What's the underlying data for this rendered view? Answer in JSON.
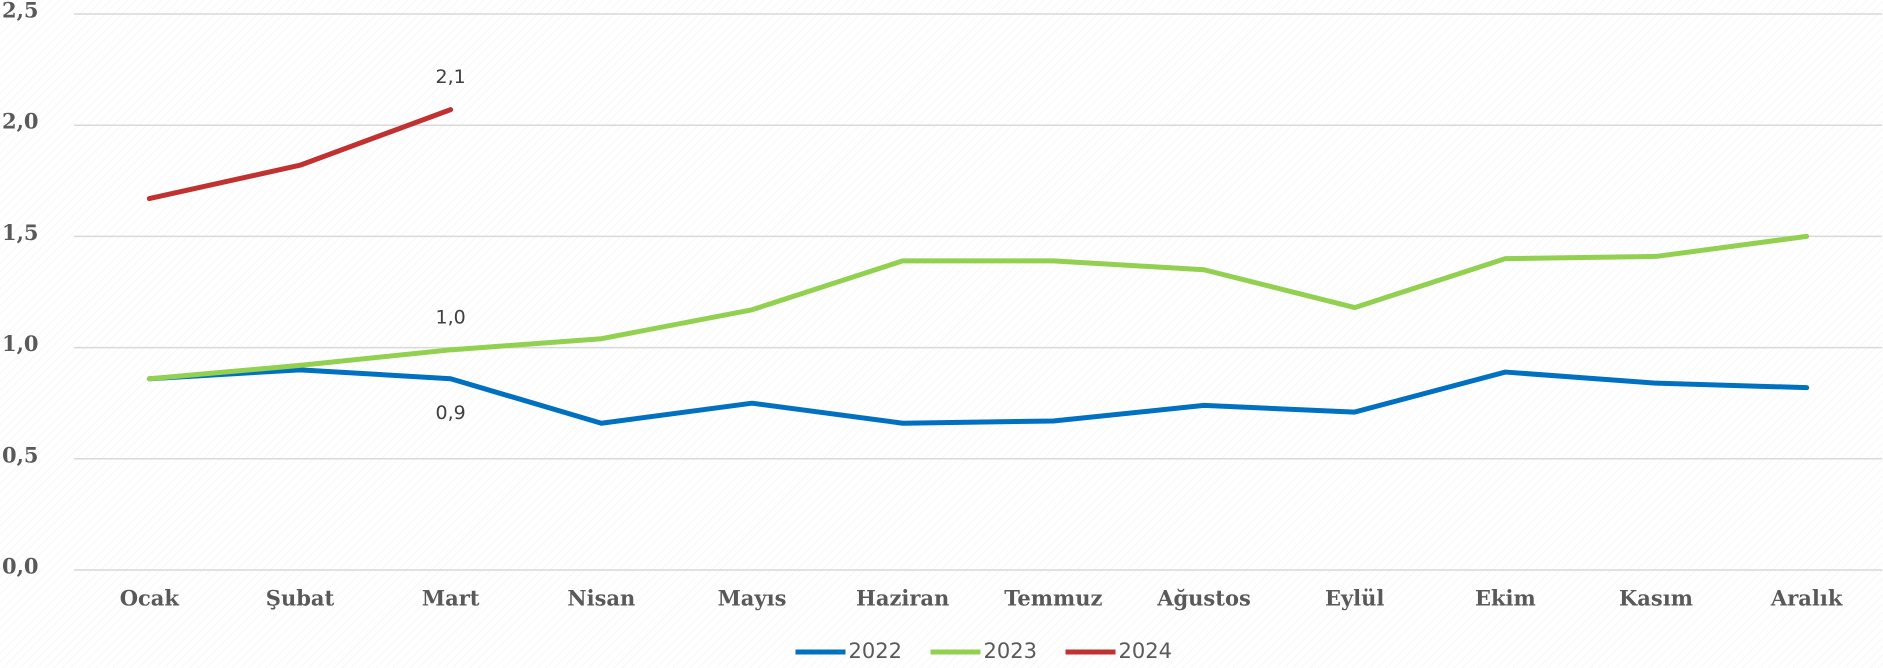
{
  "chart_data": {
    "type": "line",
    "categories": [
      "Ocak",
      "Şubat",
      "Mart",
      "Nisan",
      "Mayıs",
      "Haziran",
      "Temmuz",
      "Ağustos",
      "Eylül",
      "Ekim",
      "Kasım",
      "Aralık"
    ],
    "series": [
      {
        "name": "2022",
        "color": "#0070c0",
        "values": [
          0.86,
          0.9,
          0.86,
          0.66,
          0.75,
          0.66,
          0.67,
          0.74,
          0.71,
          0.89,
          0.84,
          0.82
        ],
        "value_labels": [
          null,
          null,
          "0,9",
          null,
          null,
          null,
          null,
          null,
          null,
          null,
          null,
          null
        ]
      },
      {
        "name": "2023",
        "color": "#92d050",
        "values": [
          0.86,
          0.92,
          0.99,
          1.04,
          1.17,
          1.39,
          1.39,
          1.35,
          1.18,
          1.4,
          1.41,
          1.5
        ],
        "value_labels": [
          null,
          null,
          "1,0",
          null,
          null,
          null,
          null,
          null,
          null,
          null,
          null,
          null
        ]
      },
      {
        "name": "2024",
        "color": "#c0312f",
        "values": [
          1.67,
          1.82,
          2.07,
          null,
          null,
          null,
          null,
          null,
          null,
          null,
          null,
          null
        ],
        "value_labels": [
          null,
          null,
          "2,1",
          null,
          null,
          null,
          null,
          null,
          null,
          null,
          null,
          null
        ]
      }
    ],
    "ylim": [
      0,
      2.5
    ],
    "yticks": [
      {
        "value": 0,
        "label": "0,0"
      },
      {
        "value": 0.5,
        "label": "0,5"
      },
      {
        "value": 1,
        "label": "1,0"
      },
      {
        "value": 1.5,
        "label": "1,5"
      },
      {
        "value": 2,
        "label": "2,0"
      },
      {
        "value": 2.5,
        "label": "2,5"
      }
    ],
    "grid": true,
    "legend": "bottom"
  }
}
